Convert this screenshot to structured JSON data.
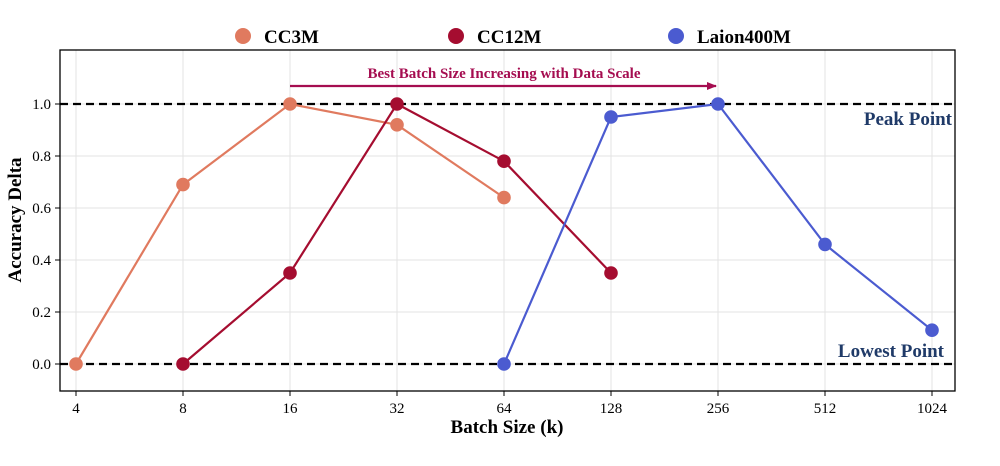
{
  "chart_data": {
    "type": "line",
    "title": "",
    "xlabel": "Batch Size (k)",
    "ylabel": "Accuracy Delta",
    "categories": [
      "4",
      "8",
      "16",
      "32",
      "64",
      "128",
      "256",
      "512",
      "1024"
    ],
    "yticks": [
      "0.0",
      "0.2",
      "0.4",
      "0.6",
      "0.8",
      "1.0"
    ],
    "ylim": [
      -0.1,
      1.2
    ],
    "grid": true,
    "legend_position": "top",
    "series": [
      {
        "name": "CC3M",
        "color": "#E07A5F",
        "x": [
          "4",
          "8",
          "16",
          "32",
          "64"
        ],
        "values": [
          0.0,
          0.69,
          1.0,
          0.92,
          0.64
        ]
      },
      {
        "name": "CC12M",
        "color": "#A50D30",
        "x": [
          "8",
          "16",
          "32",
          "64",
          "128"
        ],
        "values": [
          0.0,
          0.35,
          1.0,
          0.78,
          0.35
        ]
      },
      {
        "name": "Laion400M",
        "color": "#4B5BD0",
        "x": [
          "64",
          "128",
          "256",
          "512",
          "1024"
        ],
        "values": [
          0.0,
          0.95,
          1.0,
          0.46,
          0.13
        ]
      }
    ],
    "reference_lines": [
      {
        "y": 1.0,
        "label": "Peak Point",
        "style": "dashed"
      },
      {
        "y": 0.0,
        "label": "Lowest Point",
        "style": "dashed"
      }
    ],
    "annotations": [
      {
        "text": "Best Batch Size Increasing with Data Scale",
        "from_x": "16",
        "to_x": "256",
        "color": "#A50D50"
      }
    ],
    "label_color": "#1F3A68"
  }
}
